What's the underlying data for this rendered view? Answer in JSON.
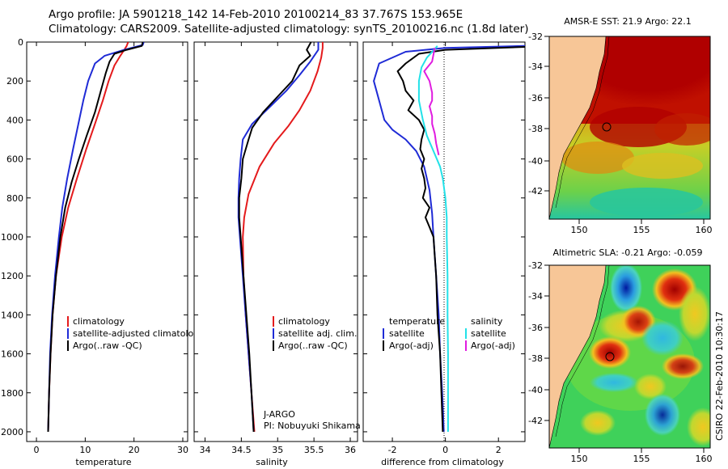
{
  "header": {
    "line1": "Argo profile: JA 5901218_142 14-Feb-2010 20100214_83 37.767S 153.965E",
    "line2": "Climatology: CARS2009. Satellite-adjusted climatology: synTS_20100216.nc (1.8d later)"
  },
  "colors": {
    "clim": "#e41a1c",
    "sat": "#1f2bd6",
    "argo": "#000000",
    "sal_sat": "#22e1e8",
    "sal_argo": "#e01ce0",
    "land": "#f7c697"
  },
  "chart_data": [
    {
      "type": "line",
      "name": "temperature",
      "xlabel": "temperature",
      "xticks": [
        0,
        10,
        20,
        30
      ],
      "xlim": [
        -2,
        31
      ],
      "ylim": [
        0,
        2050
      ],
      "yticks": [
        0,
        200,
        400,
        600,
        800,
        1000,
        1200,
        1400,
        1600,
        1800,
        2000
      ],
      "series": [
        {
          "name": "climatology",
          "color": "clim",
          "points": [
            [
              18.8,
              0
            ],
            [
              18.5,
              20
            ],
            [
              18.0,
              40
            ],
            [
              17.2,
              70
            ],
            [
              16.0,
              120
            ],
            [
              14.8,
              200
            ],
            [
              13.6,
              300
            ],
            [
              12.0,
              420
            ],
            [
              10.2,
              550
            ],
            [
              8.3,
              700
            ],
            [
              6.5,
              850
            ],
            [
              5.2,
              1000
            ],
            [
              4.0,
              1200
            ],
            [
              3.3,
              1400
            ],
            [
              2.9,
              1600
            ],
            [
              2.6,
              1800
            ],
            [
              2.4,
              2000
            ]
          ]
        },
        {
          "name": "satellite-adjusted climatology",
          "color": "sat",
          "points": [
            [
              22.0,
              0
            ],
            [
              21.8,
              15
            ],
            [
              18.0,
              40
            ],
            [
              14.0,
              70
            ],
            [
              12.0,
              110
            ],
            [
              10.6,
              200
            ],
            [
              9.6,
              300
            ],
            [
              8.6,
              420
            ],
            [
              7.5,
              550
            ],
            [
              6.3,
              700
            ],
            [
              5.3,
              850
            ],
            [
              4.6,
              1000
            ],
            [
              3.8,
              1200
            ],
            [
              3.2,
              1400
            ],
            [
              2.8,
              1600
            ],
            [
              2.6,
              1800
            ],
            [
              2.4,
              2000
            ]
          ]
        },
        {
          "name": "Argo(..raw -QC)",
          "color": "argo",
          "points": [
            [
              21.8,
              0
            ],
            [
              21.6,
              20
            ],
            [
              18.5,
              40
            ],
            [
              16.0,
              60
            ],
            [
              15.0,
              100
            ],
            [
              14.2,
              160
            ],
            [
              13.2,
              250
            ],
            [
              12.0,
              360
            ],
            [
              10.3,
              480
            ],
            [
              8.7,
              600
            ],
            [
              7.2,
              720
            ],
            [
              5.9,
              850
            ],
            [
              4.9,
              1000
            ],
            [
              4.0,
              1200
            ],
            [
              3.3,
              1400
            ],
            [
              2.9,
              1600
            ],
            [
              2.6,
              1800
            ],
            [
              2.4,
              2000
            ]
          ]
        }
      ],
      "legend": [
        "climatology",
        "satellite-adjusted climatology",
        "Argo(..raw -QC)"
      ]
    },
    {
      "type": "line",
      "name": "salinity",
      "xlabel": "salinity",
      "xticks": [
        34,
        34.5,
        35,
        35.5,
        36
      ],
      "xlim": [
        33.85,
        36.1
      ],
      "ylim": [
        0,
        2050
      ],
      "series": [
        {
          "name": "climatology",
          "color": "clim",
          "points": [
            [
              35.62,
              0
            ],
            [
              35.62,
              30
            ],
            [
              35.6,
              80
            ],
            [
              35.55,
              150
            ],
            [
              35.45,
              250
            ],
            [
              35.3,
              350
            ],
            [
              35.15,
              430
            ],
            [
              34.95,
              520
            ],
            [
              34.75,
              640
            ],
            [
              34.6,
              780
            ],
            [
              34.54,
              900
            ],
            [
              34.52,
              1000
            ],
            [
              34.53,
              1200
            ],
            [
              34.56,
              1400
            ],
            [
              34.6,
              1600
            ],
            [
              34.64,
              1800
            ],
            [
              34.68,
              2000
            ]
          ]
        },
        {
          "name": "satellite adj. clim.",
          "color": "sat",
          "points": [
            [
              35.56,
              0
            ],
            [
              35.56,
              40
            ],
            [
              35.45,
              100
            ],
            [
              35.3,
              170
            ],
            [
              35.12,
              250
            ],
            [
              34.9,
              330
            ],
            [
              34.65,
              420
            ],
            [
              34.52,
              500
            ],
            [
              34.49,
              600
            ],
            [
              34.47,
              700
            ],
            [
              34.46,
              800
            ],
            [
              34.46,
              900
            ],
            [
              34.48,
              1000
            ],
            [
              34.52,
              1200
            ],
            [
              34.56,
              1400
            ],
            [
              34.6,
              1600
            ],
            [
              34.64,
              1800
            ],
            [
              34.67,
              2000
            ]
          ]
        },
        {
          "name": "Argo(..raw -QC)",
          "color": "argo",
          "points": [
            [
              35.46,
              0
            ],
            [
              35.4,
              40
            ],
            [
              35.45,
              70
            ],
            [
              35.3,
              120
            ],
            [
              35.2,
              200
            ],
            [
              35.0,
              280
            ],
            [
              34.8,
              360
            ],
            [
              34.65,
              440
            ],
            [
              34.6,
              500
            ],
            [
              34.52,
              600
            ],
            [
              34.5,
              700
            ],
            [
              34.47,
              800
            ],
            [
              34.47,
              900
            ],
            [
              34.49,
              1000
            ],
            [
              34.53,
              1200
            ],
            [
              34.57,
              1400
            ],
            [
              34.61,
              1600
            ],
            [
              34.64,
              1800
            ],
            [
              34.67,
              2000
            ]
          ]
        }
      ],
      "legend": [
        "climatology",
        "satellite adj. clim.",
        "Argo(..raw -QC)"
      ],
      "annotations": [
        "J-ARGO",
        "PI: Nobuyuki Shikama"
      ]
    },
    {
      "type": "line",
      "name": "difference",
      "xlabel": "difference from climatology",
      "xticks": [
        -2,
        0,
        2
      ],
      "xlim": [
        -3.1,
        3.0
      ],
      "ylim": [
        0,
        2050
      ],
      "series": [
        {
          "name": "temperature satellite",
          "color": "sat",
          "points": [
            [
              3.0,
              20
            ],
            [
              0,
              30
            ],
            [
              -1.5,
              50
            ],
            [
              -2.5,
              110
            ],
            [
              -2.7,
              200
            ],
            [
              -2.5,
              300
            ],
            [
              -2.3,
              400
            ],
            [
              -2.0,
              450
            ],
            [
              -1.5,
              500
            ],
            [
              -1.1,
              560
            ],
            [
              -0.8,
              640
            ],
            [
              -0.6,
              760
            ],
            [
              -0.5,
              880
            ],
            [
              -0.45,
              1000
            ],
            [
              -0.35,
              1200
            ],
            [
              -0.25,
              1400
            ],
            [
              -0.2,
              1600
            ],
            [
              -0.12,
              1800
            ],
            [
              -0.06,
              2000
            ]
          ]
        },
        {
          "name": "temperature Argo(-adj)",
          "color": "argo",
          "points": [
            [
              3.0,
              25
            ],
            [
              0,
              40
            ],
            [
              -1.0,
              60
            ],
            [
              -1.5,
              110
            ],
            [
              -1.8,
              150
            ],
            [
              -1.6,
              200
            ],
            [
              -1.5,
              250
            ],
            [
              -1.2,
              300
            ],
            [
              -1.4,
              350
            ],
            [
              -1.0,
              400
            ],
            [
              -0.8,
              450
            ],
            [
              -0.9,
              500
            ],
            [
              -0.95,
              550
            ],
            [
              -0.8,
              600
            ],
            [
              -0.9,
              650
            ],
            [
              -0.8,
              700
            ],
            [
              -0.75,
              750
            ],
            [
              -0.85,
              800
            ],
            [
              -0.6,
              850
            ],
            [
              -0.75,
              900
            ],
            [
              -0.6,
              950
            ],
            [
              -0.45,
              1000
            ],
            [
              -0.4,
              1100
            ],
            [
              -0.35,
              1200
            ],
            [
              -0.3,
              1400
            ],
            [
              -0.2,
              1600
            ],
            [
              -0.15,
              1800
            ],
            [
              -0.1,
              2000
            ]
          ]
        },
        {
          "name": "salinity satellite",
          "color": "sal_sat",
          "points": [
            [
              -0.3,
              20
            ],
            [
              -0.7,
              80
            ],
            [
              -0.9,
              130
            ],
            [
              -1.0,
              200
            ],
            [
              -1.0,
              300
            ],
            [
              -0.85,
              400
            ],
            [
              -0.7,
              480
            ],
            [
              -0.45,
              560
            ],
            [
              -0.2,
              640
            ],
            [
              -0.1,
              700
            ],
            [
              0.0,
              800
            ],
            [
              0.05,
              900
            ],
            [
              0.05,
              1000
            ],
            [
              0.08,
              1200
            ],
            [
              0.08,
              1400
            ],
            [
              0.1,
              1600
            ],
            [
              0.1,
              1800
            ],
            [
              0.1,
              2000
            ]
          ]
        },
        {
          "name": "salinity Argo(-adj)",
          "color": "sal_argo",
          "points": [
            [
              -0.4,
              30
            ],
            [
              -0.5,
              100
            ],
            [
              -0.8,
              150
            ],
            [
              -0.6,
              200
            ],
            [
              -0.5,
              260
            ],
            [
              -0.5,
              300
            ],
            [
              -0.6,
              330
            ],
            [
              -0.5,
              380
            ],
            [
              -0.5,
              420
            ],
            [
              -0.4,
              470
            ],
            [
              -0.35,
              520
            ],
            [
              -0.25,
              580
            ]
          ]
        }
      ],
      "legend_headers": [
        "temperature",
        "salinity"
      ],
      "legend": [
        "satellite",
        "Argo(-adj)",
        "satellite",
        "Argo(-adj)"
      ]
    }
  ],
  "maps": {
    "sst": {
      "title": "AMSR-E SST: 21.9 Argo: 22.1",
      "xticks": [
        "150",
        "155",
        "160"
      ],
      "yticks": [
        "-32",
        "-34",
        "-36",
        "-38",
        "-40",
        "-42"
      ]
    },
    "sla": {
      "title": "Altimetric SLA: -0.21 Argo: -0.059",
      "xticks": [
        "150",
        "155",
        "160"
      ],
      "yticks": [
        "-32",
        "-34",
        "-36",
        "-38",
        "-40",
        "-42"
      ]
    }
  },
  "footer": {
    "credit": "CSIRO 22-Feb-2010 10:30:17"
  }
}
